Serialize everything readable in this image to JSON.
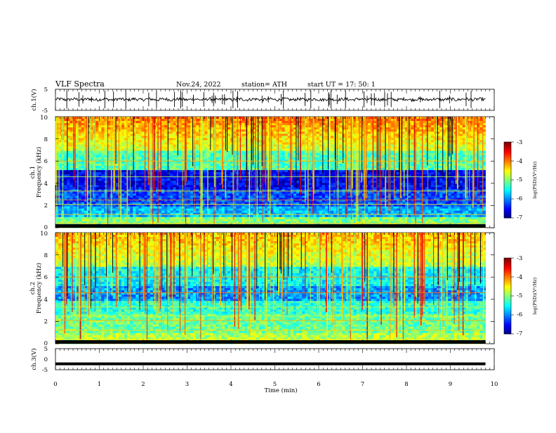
{
  "header": {
    "title": "VLF  Spectra",
    "date": "Nov.24, 2022",
    "station": "station= ATH",
    "start": "start  UT  =    17: 50: 1"
  },
  "chart_data": [
    {
      "type": "line",
      "panel": "ch1-waveform",
      "ylabel": "ch.1(V)",
      "ylim": [
        -5,
        5
      ],
      "yticks": [
        "5",
        "-5"
      ],
      "xlim": [
        0,
        10
      ],
      "baseline": 0.2
    },
    {
      "type": "heatmap",
      "panel": "ch1-spectrogram",
      "ylabel_line1": "ch.1",
      "ylabel_line2": "Frequency  (kHz)",
      "ylim": [
        0,
        10
      ],
      "yticks": [
        "0",
        "2",
        "4",
        "6",
        "8",
        "10"
      ],
      "xlim": [
        0,
        9.8
      ],
      "colorbar": {
        "label": "log(PSD)(V²/Hz)",
        "range": [
          -7,
          -3
        ],
        "ticks": [
          "-3",
          "-4",
          "-5",
          "-6",
          "-7"
        ]
      }
    },
    {
      "type": "heatmap",
      "panel": "ch2-spectrogram",
      "ylabel_line1": "ch.2",
      "ylabel_line2": "Frequency  (kHz)",
      "ylim": [
        0,
        10
      ],
      "yticks": [
        "0",
        "2",
        "4",
        "6",
        "8",
        "10"
      ],
      "xlim": [
        0,
        9.8
      ],
      "colorbar": {
        "label": "log(PSD)(V²/Hz)",
        "range": [
          -7,
          -3
        ],
        "ticks": [
          "-3",
          "-4",
          "-5",
          "-6",
          "-7"
        ]
      }
    },
    {
      "type": "line",
      "panel": "ch3-waveform",
      "ylabel": "ch.3(V)",
      "ylim": [
        -5,
        5
      ],
      "yticks": [
        "5",
        "0",
        "-5"
      ],
      "xlim": [
        0,
        10
      ],
      "baseline": -2.2
    }
  ],
  "xaxis": {
    "label": "Time  (min)",
    "ticks": [
      "0",
      "1",
      "2",
      "3",
      "4",
      "5",
      "6",
      "7",
      "8",
      "9",
      "10"
    ]
  }
}
